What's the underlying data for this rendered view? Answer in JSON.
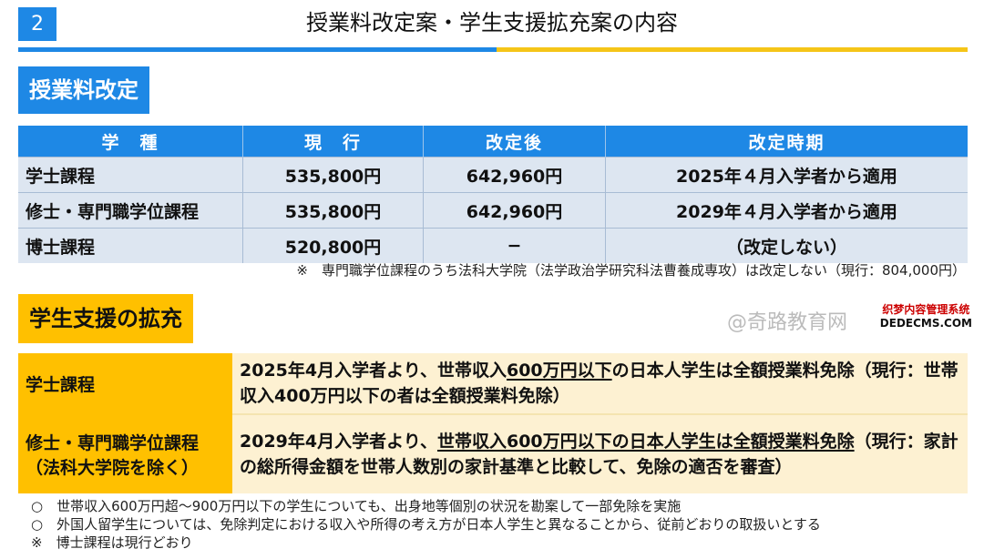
{
  "header": {
    "page_number": "2",
    "title": "授業料改定案・学生支援拡充案の内容"
  },
  "colors": {
    "blue": "#1e88e5",
    "yellow": "#ffc000"
  },
  "fee_section": {
    "label": "授業料改定",
    "columns": [
      "学　種",
      "現　行",
      "改定後",
      "改定時期"
    ],
    "rows": [
      [
        "学士課程",
        "535,800円",
        "642,960円",
        "2025年４月入学者から適用"
      ],
      [
        "修士・専門職学位課程",
        "535,800円",
        "642,960円",
        "2029年４月入学者から適用"
      ],
      [
        "博士課程",
        "520,800円",
        "−",
        "（改定しない）"
      ]
    ],
    "footnote": "※　専門職学位課程のうち法科大学院（法学政治学研究科法曹養成専攻）は改定しない（現行：804,000円）"
  },
  "support_section": {
    "label": "学生支援の拡充",
    "rows": [
      {
        "category": "学士課程",
        "text_a": "2025年4月入学者より、世帯収入",
        "text_u": "600万円以下",
        "text_b": "の日本人学生は全額授業料免除（現行：世帯収入400万円以下の者は全額授業料免除）"
      },
      {
        "category_l1": "修士・専門職学位課程",
        "category_l2": "（法科大学院を除く）",
        "text_a": "2029年4月入学者より、",
        "text_u": "世帯収入600万円以下の日本人学生は全額授業料免除",
        "text_b": "（現行：家計の総所得金額を世帯人数別の家計基準と比較して、免除の適否を審査）"
      }
    ]
  },
  "notes": [
    "○　世帯収入600万円超～900万円以下の学生についても、出身地等個別の状況を勘案して一部免除を実施",
    "○　外国人留学生については、免除判定における収入や所得の考え方が日本人学生と異なることから、従前どおりの取扱いとする",
    "※　博士課程は現行どおり"
  ],
  "watermark": {
    "text": "@奇路教育网",
    "site_l1": "织梦内容管理系统",
    "site_l2": "DEDECMS.COM"
  }
}
